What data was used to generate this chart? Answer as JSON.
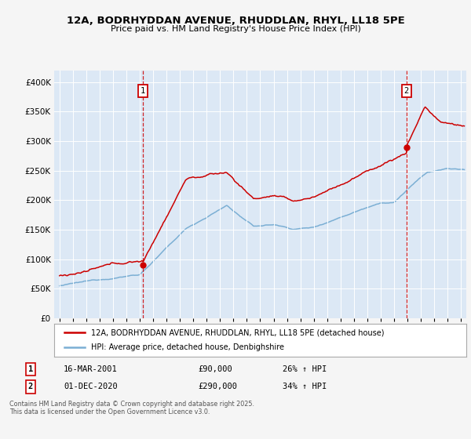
{
  "title_line1": "12A, BODRHYDDAN AVENUE, RHUDDLAN, RHYL, LL18 5PE",
  "title_line2": "Price paid vs. HM Land Registry's House Price Index (HPI)",
  "red_color": "#cc0000",
  "blue_color": "#7bafd4",
  "vline_color": "#cc0000",
  "grid_color": "#ffffff",
  "plot_bg_color": "#dce8f5",
  "fig_bg_color": "#f5f5f5",
  "legend_label_red": "12A, BODRHYDDAN AVENUE, RHUDDLAN, RHYL, LL18 5PE (detached house)",
  "legend_label_blue": "HPI: Average price, detached house, Denbighshire",
  "footer": "Contains HM Land Registry data © Crown copyright and database right 2025.\nThis data is licensed under the Open Government Licence v3.0.",
  "ylim": [
    0,
    420000
  ],
  "yticks": [
    0,
    50000,
    100000,
    150000,
    200000,
    250000,
    300000,
    350000,
    400000
  ],
  "xlim_start": 1994.6,
  "xlim_end": 2025.4,
  "sale1_x": 2001.21,
  "sale2_x": 2020.92,
  "ann1_label": "1",
  "ann2_label": "2",
  "row1_date": "16-MAR-2001",
  "row1_price": "£90,000",
  "row1_hpi": "26% ↑ HPI",
  "row2_date": "01-DEC-2020",
  "row2_price": "£290,000",
  "row2_hpi": "34% ↑ HPI"
}
